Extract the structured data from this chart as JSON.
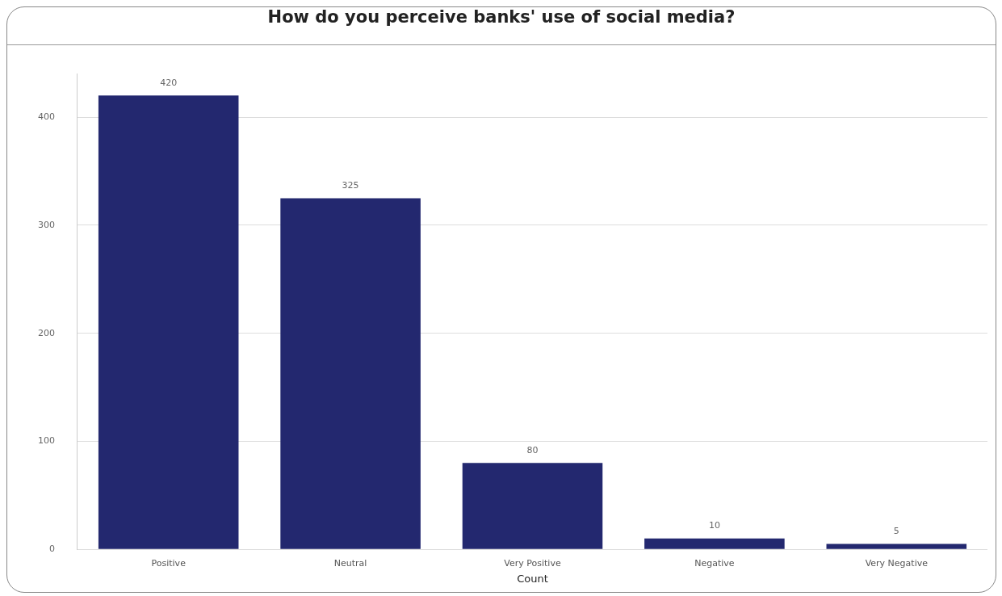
{
  "chart_data": {
    "type": "bar",
    "title": "How do you perceive banks' use of social media?",
    "xlabel": "Count",
    "categories": [
      "Positive",
      "Neutral",
      "Very Positive",
      "Negative",
      "Very Negative"
    ],
    "values": [
      420,
      325,
      80,
      10,
      5
    ],
    "color": "#23286f",
    "ylim": [
      0,
      440
    ],
    "yticks": [
      0,
      100,
      200,
      300,
      400
    ],
    "grid": "y",
    "data_labels": true,
    "legend": false
  }
}
